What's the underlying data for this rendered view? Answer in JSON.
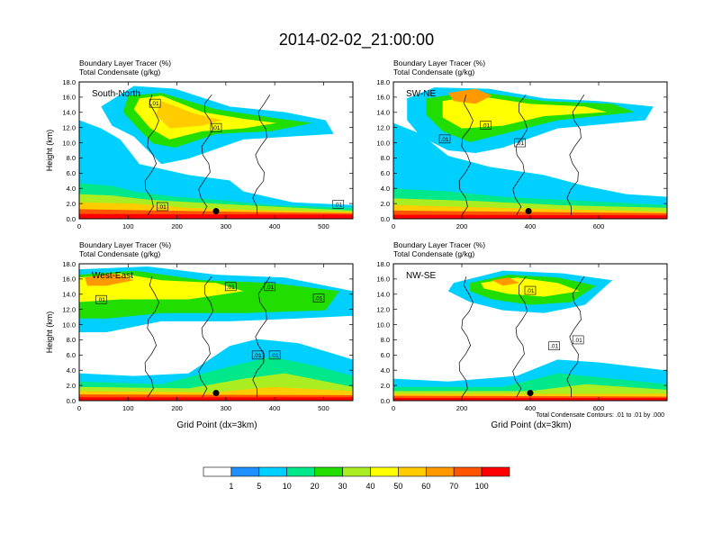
{
  "title": "2014-02-02_21:00:00",
  "panel_label_1": "Boundary Layer Tracer    (%)",
  "panel_label_2": "Total Condensate    (g/kg)",
  "colors": {
    "scale": [
      "#ffffff",
      "#1e90ff",
      "#00d0ff",
      "#00e88a",
      "#22dd00",
      "#aaee22",
      "#ffff00",
      "#ffcc00",
      "#ff9900",
      "#ff5500",
      "#ff0000"
    ]
  },
  "colorbar": {
    "labels": [
      "1",
      "5",
      "10",
      "20",
      "30",
      "40",
      "50",
      "60",
      "70",
      "100"
    ]
  },
  "contour_note": "Total Condensate Contours: .01 to .01 by .000",
  "chart_data": [
    {
      "type": "heatmap",
      "name": "South-North",
      "ylabel": "Height (km)",
      "xlabel": "",
      "xlim": [
        0,
        560
      ],
      "ylim": [
        0,
        18
      ],
      "xticks": [
        "0",
        "100",
        "200",
        "300",
        "400",
        "500"
      ],
      "xtick_values": [
        0,
        100,
        200,
        300,
        400,
        500
      ],
      "yticks": [
        "0.0",
        "2.0",
        "4.0",
        "6.0",
        "8.0",
        "10.0",
        "12.0",
        "14.0",
        "16.0",
        "18.0"
      ],
      "contour_labels": [
        {
          "text": ".01",
          "x": 155,
          "y": 15.2
        },
        {
          "text": ".01",
          "x": 280,
          "y": 12.0
        },
        {
          "text": ".01",
          "x": 170,
          "y": 1.6
        },
        {
          "text": ".01",
          "x": 530,
          "y": 1.9
        }
      ],
      "marker": {
        "x": 280,
        "y": 1.0
      }
    },
    {
      "type": "heatmap",
      "name": "SW-NE",
      "ylabel": "",
      "xlabel": "",
      "xlim": [
        0,
        800
      ],
      "ylim": [
        0,
        18
      ],
      "xticks": [
        "0",
        "200",
        "400",
        "600"
      ],
      "xtick_values": [
        0,
        200,
        400,
        600
      ],
      "yticks": [
        "0.0",
        "2.0",
        "4.0",
        "6.0",
        "8.0",
        "10.0",
        "12.0",
        "14.0",
        "16.0",
        "18.0"
      ],
      "contour_labels": [
        {
          "text": ".01",
          "x": 150,
          "y": 10.5
        },
        {
          "text": ".01",
          "x": 270,
          "y": 12.3
        },
        {
          "text": ".01",
          "x": 370,
          "y": 10.0
        }
      ],
      "marker": {
        "x": 395,
        "y": 1.0
      }
    },
    {
      "type": "heatmap",
      "name": "West-East",
      "ylabel": "Height (km)",
      "xlabel": "Grid Point  (dx=3km)",
      "xlim": [
        0,
        560
      ],
      "ylim": [
        0,
        18
      ],
      "xticks": [
        "0",
        "100",
        "200",
        "300",
        "400",
        "500"
      ],
      "xtick_values": [
        0,
        100,
        200,
        300,
        400,
        500
      ],
      "yticks": [
        "0.0",
        "2.0",
        "4.0",
        "6.0",
        "8.0",
        "10.0",
        "12.0",
        "14.0",
        "16.0",
        "18.0"
      ],
      "contour_labels": [
        {
          "text": ".01",
          "x": 45,
          "y": 13.3
        },
        {
          "text": ".01",
          "x": 310,
          "y": 15.0
        },
        {
          "text": ".01",
          "x": 390,
          "y": 15.0
        },
        {
          "text": ".01",
          "x": 490,
          "y": 13.5
        },
        {
          "text": ".01",
          "x": 365,
          "y": 6.0
        },
        {
          "text": ".01",
          "x": 400,
          "y": 6.0
        }
      ],
      "marker": {
        "x": 280,
        "y": 1.0
      }
    },
    {
      "type": "heatmap",
      "name": "NW-SE",
      "ylabel": "",
      "xlabel": "Grid Point  (dx=3km)",
      "xlim": [
        0,
        800
      ],
      "ylim": [
        0,
        18
      ],
      "xticks": [
        "0",
        "200",
        "400",
        "600"
      ],
      "xtick_values": [
        0,
        200,
        400,
        600
      ],
      "yticks": [
        "0.0",
        "2.0",
        "4.0",
        "6.0",
        "8.0",
        "10.0",
        "12.0",
        "14.0",
        "16.0",
        "18.0"
      ],
      "contour_labels": [
        {
          "text": ".01",
          "x": 400,
          "y": 14.5
        },
        {
          "text": ".01",
          "x": 470,
          "y": 7.2
        },
        {
          "text": ".01",
          "x": 540,
          "y": 8.0
        }
      ],
      "marker": {
        "x": 400,
        "y": 1.0
      }
    }
  ]
}
